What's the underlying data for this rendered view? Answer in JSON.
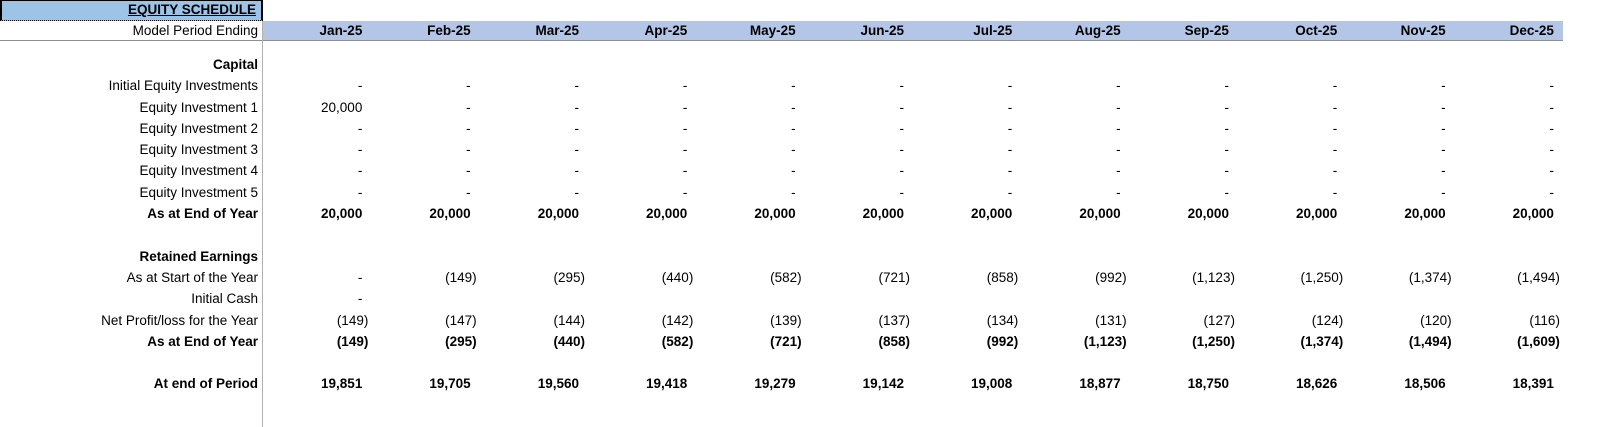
{
  "title": "EQUITY SCHEDULE",
  "header": {
    "row_label": "Model Period Ending",
    "months": [
      "Jan-25",
      "Feb-25",
      "Mar-25",
      "Apr-25",
      "May-25",
      "Jun-25",
      "Jul-25",
      "Aug-25",
      "Sep-25",
      "Oct-25",
      "Nov-25",
      "Dec-25"
    ]
  },
  "colors": {
    "title_fill": "#9DC3E6",
    "header_fill": "#B4C6E7",
    "header_rule": "#8E8E8E",
    "label_divider": "#B0B0B0",
    "text": "#000000"
  },
  "rows": [
    {
      "type": "section",
      "bold": true,
      "label": "Capital"
    },
    {
      "type": "data",
      "bold": false,
      "label": "Initial Equity Investments",
      "values": [
        "-",
        "-",
        "-",
        "-",
        "-",
        "-",
        "-",
        "-",
        "-",
        "-",
        "-",
        "-"
      ]
    },
    {
      "type": "data",
      "bold": false,
      "label": "Equity Investment 1",
      "values": [
        "20,000",
        "-",
        "-",
        "-",
        "-",
        "-",
        "-",
        "-",
        "-",
        "-",
        "-",
        "-"
      ]
    },
    {
      "type": "data",
      "bold": false,
      "label": "Equity Investment 2",
      "values": [
        "-",
        "-",
        "-",
        "-",
        "-",
        "-",
        "-",
        "-",
        "-",
        "-",
        "-",
        "-"
      ]
    },
    {
      "type": "data",
      "bold": false,
      "label": "Equity Investment 3",
      "values": [
        "-",
        "-",
        "-",
        "-",
        "-",
        "-",
        "-",
        "-",
        "-",
        "-",
        "-",
        "-"
      ]
    },
    {
      "type": "data",
      "bold": false,
      "label": "Equity Investment 4",
      "values": [
        "-",
        "-",
        "-",
        "-",
        "-",
        "-",
        "-",
        "-",
        "-",
        "-",
        "-",
        "-"
      ]
    },
    {
      "type": "data",
      "bold": false,
      "label": "Equity Investment 5",
      "values": [
        "-",
        "-",
        "-",
        "-",
        "-",
        "-",
        "-",
        "-",
        "-",
        "-",
        "-",
        "-"
      ]
    },
    {
      "type": "data",
      "bold": true,
      "label": "As at End of Year",
      "values": [
        "20,000",
        "20,000",
        "20,000",
        "20,000",
        "20,000",
        "20,000",
        "20,000",
        "20,000",
        "20,000",
        "20,000",
        "20,000",
        "20,000"
      ]
    },
    {
      "type": "blank"
    },
    {
      "type": "section",
      "bold": true,
      "label": "Retained Earnings"
    },
    {
      "type": "data",
      "bold": false,
      "label": "As at Start of the Year",
      "values": [
        "-",
        "(149)",
        "(295)",
        "(440)",
        "(582)",
        "(721)",
        "(858)",
        "(992)",
        "(1,123)",
        "(1,250)",
        "(1,374)",
        "(1,494)"
      ]
    },
    {
      "type": "data",
      "bold": false,
      "label": "Initial Cash",
      "values": [
        "-",
        "",
        "",
        "",
        "",
        "",
        "",
        "",
        "",
        "",
        "",
        ""
      ]
    },
    {
      "type": "data",
      "bold": false,
      "label": "Net Profit/loss for the Year",
      "values": [
        "(149)",
        "(147)",
        "(144)",
        "(142)",
        "(139)",
        "(137)",
        "(134)",
        "(131)",
        "(127)",
        "(124)",
        "(120)",
        "(116)"
      ]
    },
    {
      "type": "data",
      "bold": true,
      "label": "As at End of Year",
      "values": [
        "(149)",
        "(295)",
        "(440)",
        "(582)",
        "(721)",
        "(858)",
        "(992)",
        "(1,123)",
        "(1,250)",
        "(1,374)",
        "(1,494)",
        "(1,609)"
      ]
    },
    {
      "type": "blank"
    },
    {
      "type": "data",
      "bold": true,
      "label": "At end of Period",
      "values": [
        "19,851",
        "19,705",
        "19,560",
        "19,418",
        "19,279",
        "19,142",
        "19,008",
        "18,877",
        "18,750",
        "18,626",
        "18,506",
        "18,391"
      ]
    }
  ]
}
